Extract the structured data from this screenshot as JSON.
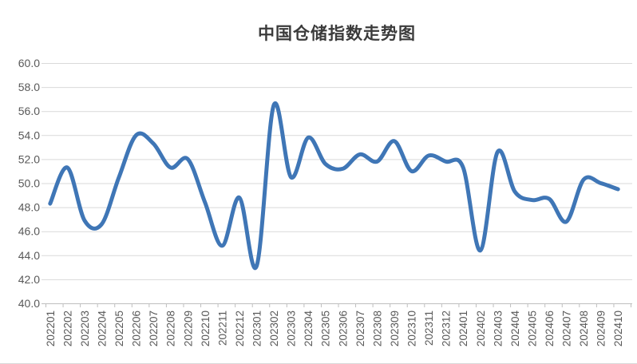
{
  "chart_data": {
    "type": "line",
    "title": "中国仓储指数走势图",
    "categories": [
      "202201",
      "202202",
      "202203",
      "202204",
      "202205",
      "202206",
      "202207",
      "202208",
      "202209",
      "202210",
      "202211",
      "202212",
      "202301",
      "202302",
      "202303",
      "202304",
      "202305",
      "202306",
      "202307",
      "202308",
      "202309",
      "202310",
      "202311",
      "202312",
      "202401",
      "202402",
      "202403",
      "202404",
      "202405",
      "202406",
      "202407",
      "202408",
      "202409",
      "202410"
    ],
    "values": [
      48.3,
      51.3,
      46.9,
      46.6,
      50.5,
      54.0,
      53.3,
      51.3,
      52.0,
      48.4,
      44.8,
      48.8,
      43.1,
      56.5,
      50.5,
      53.8,
      51.6,
      51.2,
      52.4,
      51.8,
      53.5,
      51.0,
      52.3,
      51.8,
      51.3,
      44.4,
      52.6,
      49.3,
      48.6,
      48.7,
      46.8,
      50.3,
      50.0,
      49.5
    ],
    "ylim": [
      40,
      60
    ],
    "y_ticks": [
      40,
      42,
      44,
      46,
      48,
      50,
      52,
      54,
      56,
      58,
      60
    ],
    "y_tick_labels": [
      "40.0",
      "42.0",
      "44.0",
      "46.0",
      "48.0",
      "50.0",
      "52.0",
      "54.0",
      "56.0",
      "58.0",
      "60.0"
    ],
    "xlabel": "",
    "ylabel": "",
    "legend": "none",
    "grid": "horizontal",
    "smooth_line": true,
    "line_color": "#3f76b6",
    "gridline_color": "#d9d9d9",
    "axis_color": "#bfbfbf",
    "tick_label_color": "#595959",
    "title_color": "#3b3b3b",
    "background_color": "#ffffff"
  }
}
